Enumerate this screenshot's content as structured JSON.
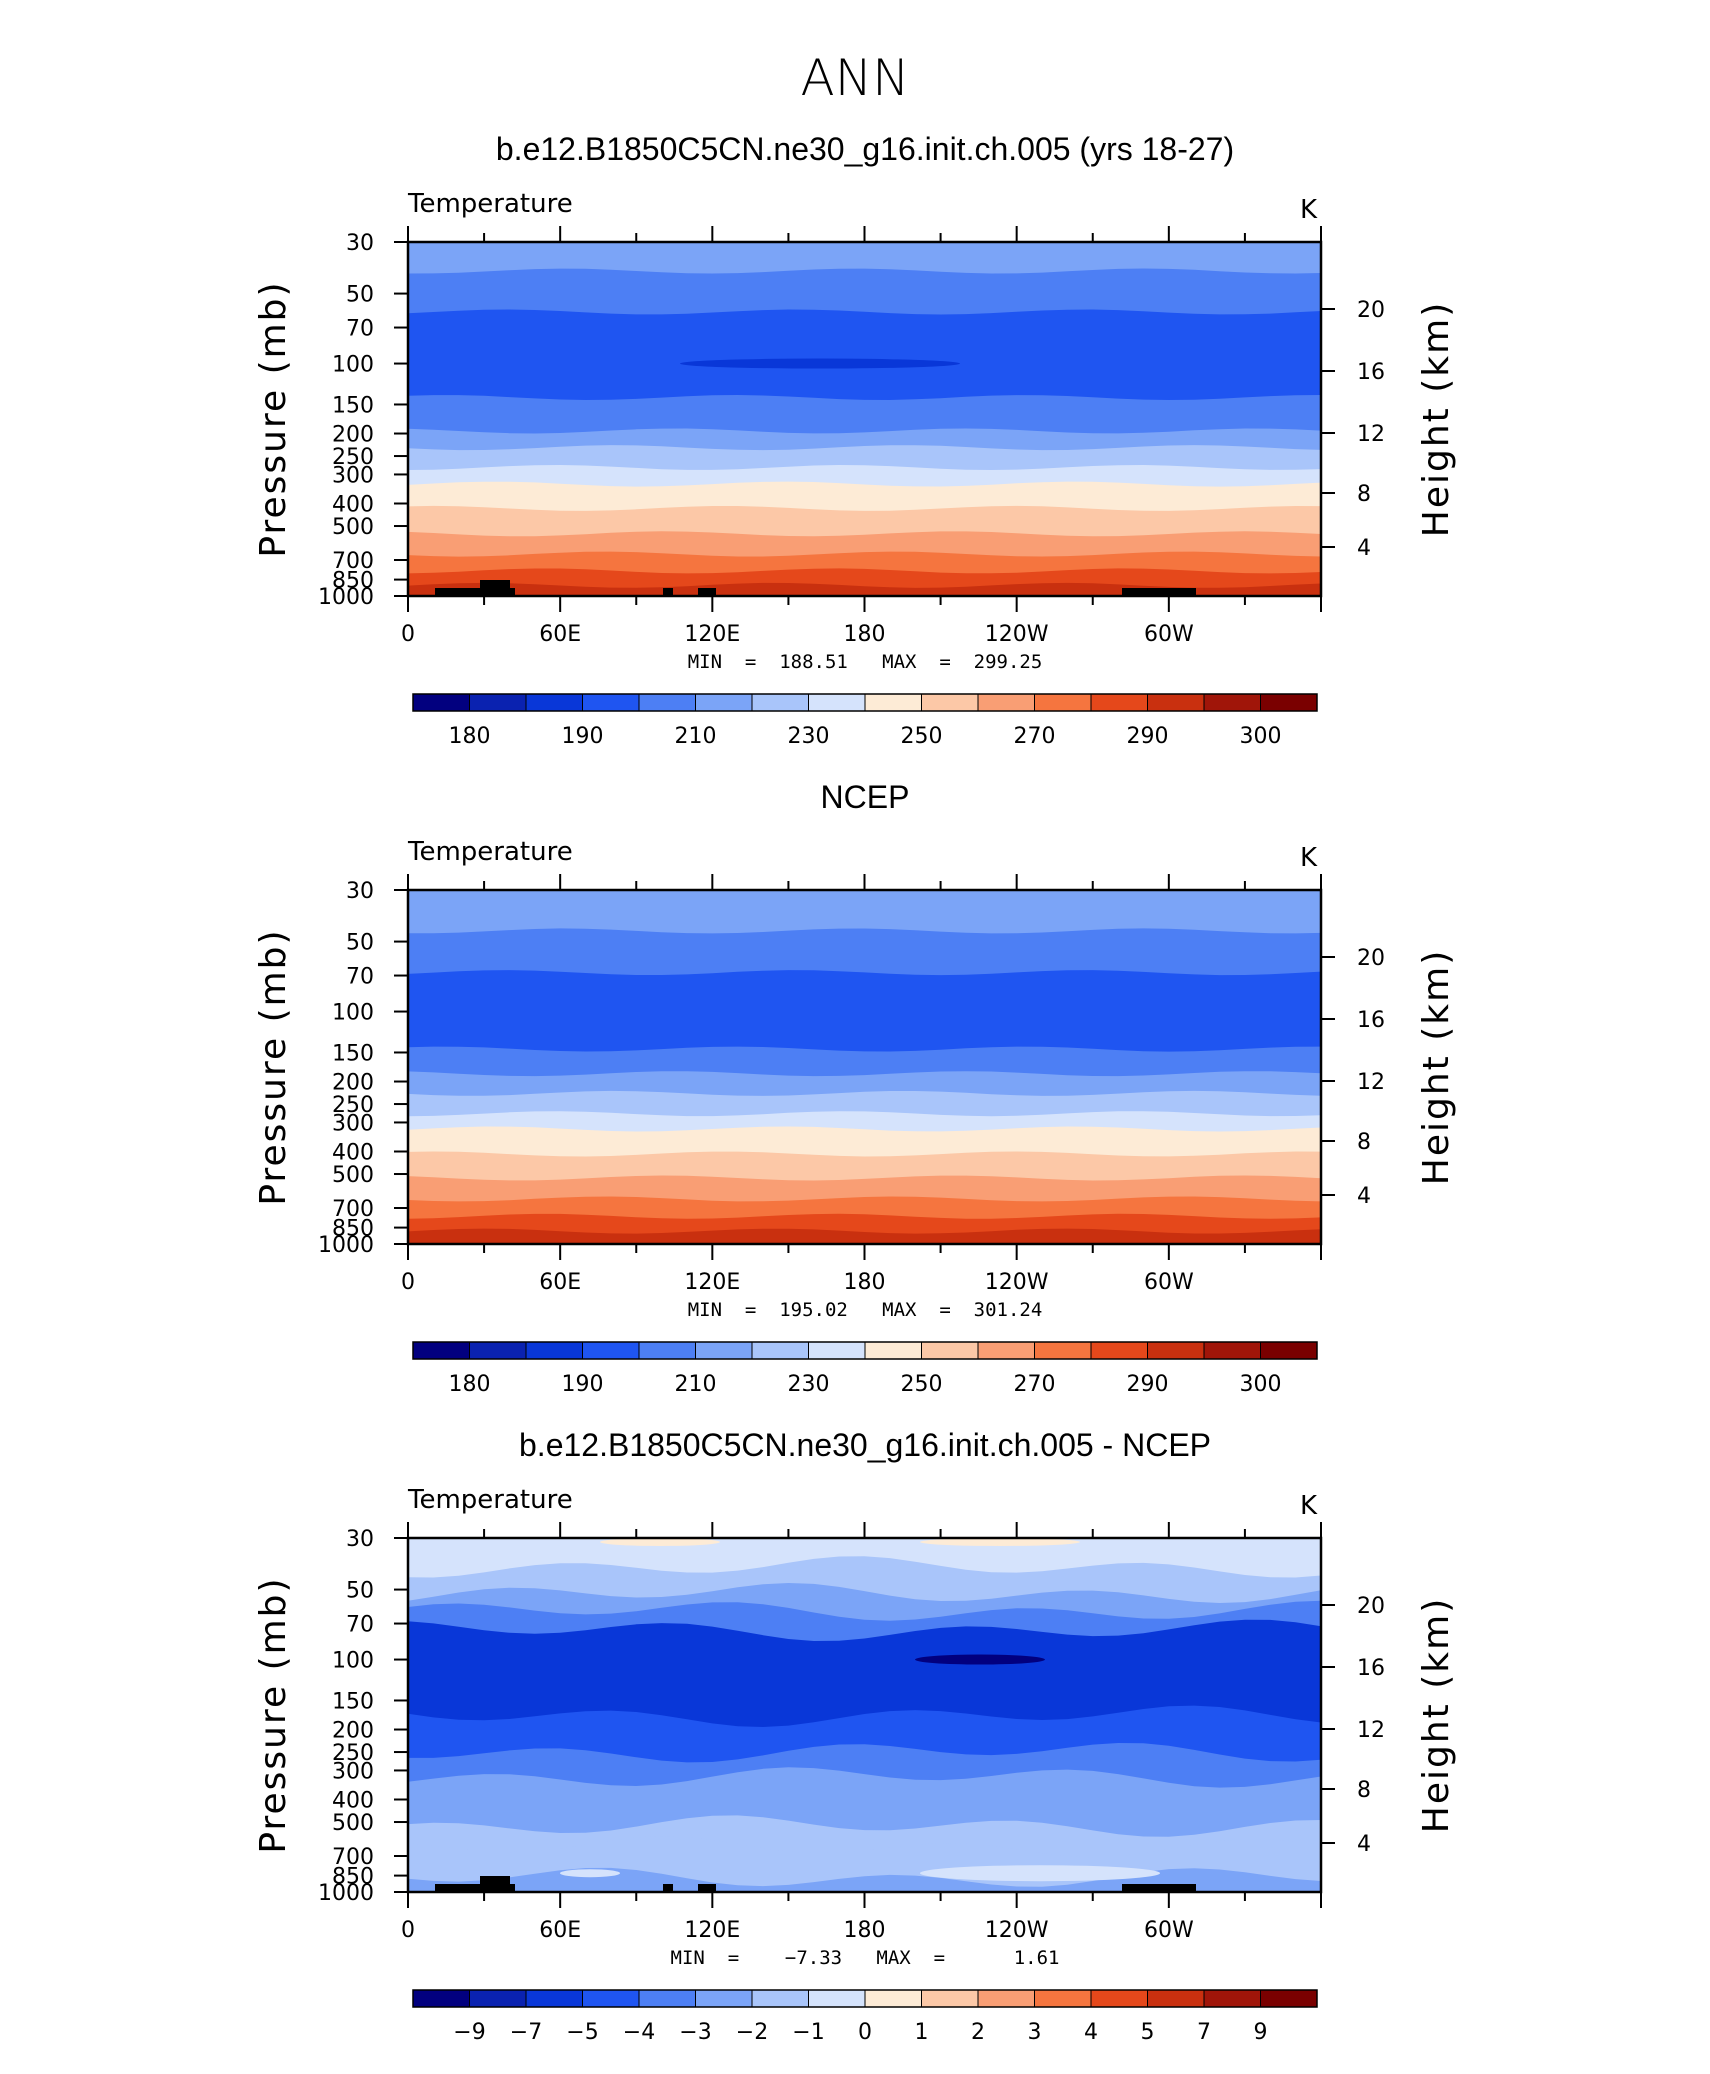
{
  "suptitle": "ANN",
  "chart_data": [
    {
      "type": "heatmap",
      "title": "b.e12.B1850C5CN.ne30_g16.init.ch.005 (yrs 18-27)",
      "left_string": "Temperature",
      "right_string": "K",
      "ylabel": "Pressure  (mb)",
      "y2label": "Height  (km)",
      "x_ticks": [
        "0",
        "60E",
        "120E",
        "180",
        "120W",
        "60W"
      ],
      "y_ticks": [
        "30",
        "50",
        "70",
        "100",
        "150",
        "200",
        "250",
        "300",
        "400",
        "500",
        "700",
        "850",
        "1000"
      ],
      "y2_ticks": [
        "20",
        "16",
        "12",
        "8",
        "4"
      ],
      "min_max_text": "MIN  =  188.51   MAX  =  299.25",
      "min": 188.51,
      "max": 299.25,
      "colorbar_labels": [
        "180",
        "190",
        "210",
        "230",
        "250",
        "270",
        "290",
        "300"
      ],
      "layers": [
        {
          "p": 30,
          "color": "#7BA4F7"
        },
        {
          "p": 40,
          "color": "#4D7FF4"
        },
        {
          "p": 60,
          "color": "#1F55F1"
        },
        {
          "p": 140,
          "color": "#4D7FF4"
        },
        {
          "p": 195,
          "color": "#7BA4F7"
        },
        {
          "p": 230,
          "color": "#A9C5FA"
        },
        {
          "p": 280,
          "color": "#D5E3FC"
        },
        {
          "p": 330,
          "color": "#FDEBD6"
        },
        {
          "p": 420,
          "color": "#FCC8A7"
        },
        {
          "p": 540,
          "color": "#F99E74"
        },
        {
          "p": 660,
          "color": "#F5753F"
        },
        {
          "p": 780,
          "color": "#E5481B"
        },
        {
          "p": 900,
          "color": "#C9300F"
        }
      ]
    },
    {
      "type": "heatmap",
      "title": "NCEP",
      "left_string": "Temperature",
      "right_string": "K",
      "ylabel": "Pressure  (mb)",
      "y2label": "Height  (km)",
      "x_ticks": [
        "0",
        "60E",
        "120E",
        "180",
        "120W",
        "60W"
      ],
      "y_ticks": [
        "30",
        "50",
        "70",
        "100",
        "150",
        "200",
        "250",
        "300",
        "400",
        "500",
        "700",
        "850",
        "1000"
      ],
      "y2_ticks": [
        "20",
        "16",
        "12",
        "8",
        "4"
      ],
      "min_max_text": "MIN  =  195.02   MAX  =  301.24",
      "min": 195.02,
      "max": 301.24,
      "colorbar_labels": [
        "180",
        "190",
        "210",
        "230",
        "250",
        "270",
        "290",
        "300"
      ],
      "layers": [
        {
          "p": 30,
          "color": "#7BA4F7"
        },
        {
          "p": 45,
          "color": "#4D7FF4"
        },
        {
          "p": 68,
          "color": "#1F55F1"
        },
        {
          "p": 145,
          "color": "#4D7FF4"
        },
        {
          "p": 185,
          "color": "#7BA4F7"
        },
        {
          "p": 225,
          "color": "#A9C5FA"
        },
        {
          "p": 275,
          "color": "#D5E3FC"
        },
        {
          "p": 320,
          "color": "#FDEBD6"
        },
        {
          "p": 410,
          "color": "#FCC8A7"
        },
        {
          "p": 520,
          "color": "#F99E74"
        },
        {
          "p": 640,
          "color": "#F5753F"
        },
        {
          "p": 760,
          "color": "#E5481B"
        },
        {
          "p": 880,
          "color": "#C9300F"
        }
      ]
    },
    {
      "type": "heatmap",
      "title": "b.e12.B1850C5CN.ne30_g16.init.ch.005 - NCEP",
      "left_string": "Temperature",
      "right_string": "K",
      "ylabel": "Pressure  (mb)",
      "y2label": "Height  (km)",
      "x_ticks": [
        "0",
        "60E",
        "120E",
        "180",
        "120W",
        "60W"
      ],
      "y_ticks": [
        "30",
        "50",
        "70",
        "100",
        "150",
        "200",
        "250",
        "300",
        "400",
        "500",
        "700",
        "850",
        "1000"
      ],
      "y2_ticks": [
        "20",
        "16",
        "12",
        "8",
        "4"
      ],
      "min_max_text": "MIN  =    −7.33   MAX  =      1.61",
      "min": -7.33,
      "max": 1.61,
      "colorbar_labels": [
        "−9",
        "−7",
        "−5",
        "−4",
        "−3",
        "−2",
        "−1",
        "0",
        "1",
        "2",
        "3",
        "4",
        "5",
        "7",
        "9"
      ],
      "layers": [
        {
          "p": 30,
          "color": "#D5E3FC"
        },
        {
          "p": 40,
          "color": "#A9C5FA"
        },
        {
          "p": 52,
          "color": "#7BA4F7"
        },
        {
          "p": 62,
          "color": "#4D7FF4"
        },
        {
          "p": 75,
          "color": "#0937D8"
        },
        {
          "p": 175,
          "color": "#1F55F1"
        },
        {
          "p": 250,
          "color": "#4D7FF4"
        },
        {
          "p": 320,
          "color": "#7BA4F7"
        },
        {
          "p": 520,
          "color": "#A9C5FA"
        },
        {
          "p": 640,
          "color": "#A9C5FA"
        },
        {
          "p": 870,
          "color": "#7BA4F7"
        }
      ]
    }
  ],
  "colors": {
    "colorbar_16": [
      "#02007F",
      "#0A22B0",
      "#0937D8",
      "#1F55F1",
      "#4D7FF4",
      "#7BA4F7",
      "#A9C5FA",
      "#D5E3FC",
      "#FDEBD6",
      "#FCC8A7",
      "#F99E74",
      "#F5753F",
      "#E5481B",
      "#C9300F",
      "#A01509",
      "#7A0000"
    ],
    "topography": "#000000"
  }
}
